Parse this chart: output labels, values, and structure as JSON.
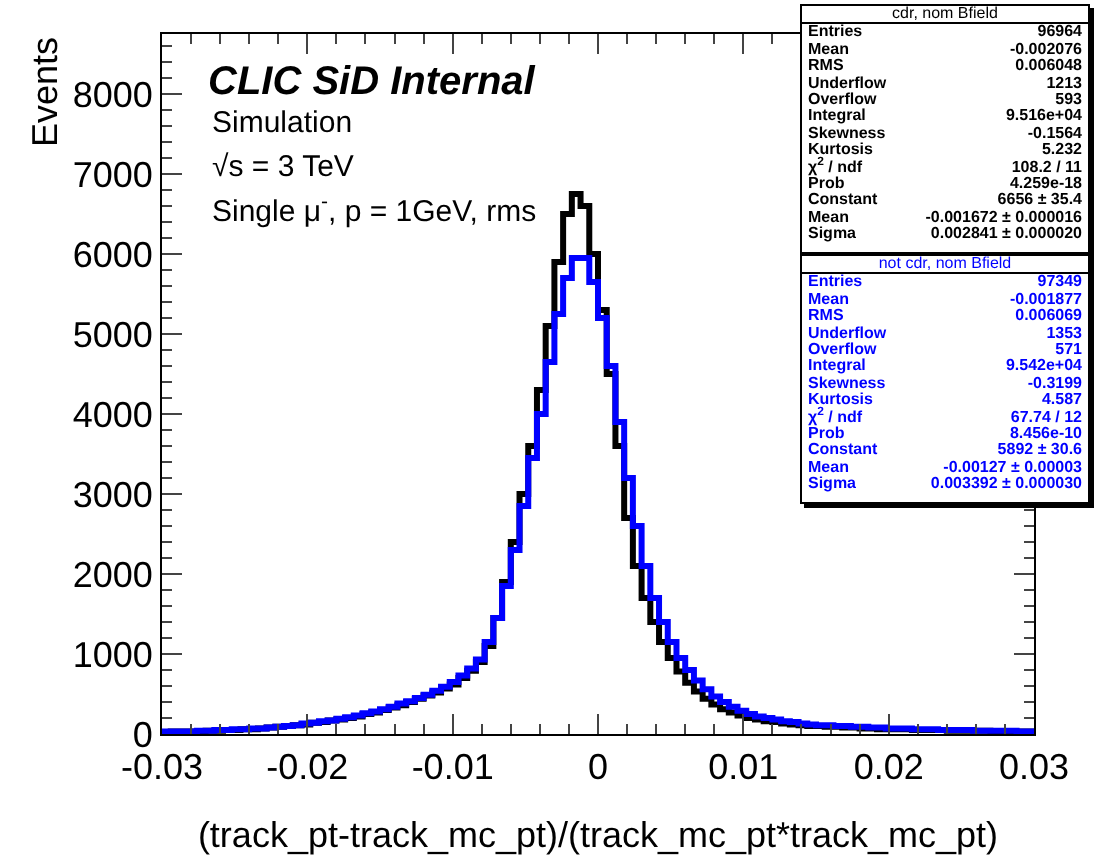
{
  "chart_data": {
    "type": "histogram",
    "title": "CLIC SiD Internal",
    "subtitle": "Simulation",
    "xlabel": "(track_pt-track_mc_pt)/(track_mc_pt*track_mc_pt)",
    "ylabel": "Events",
    "bins": [
      -0.03,
      -0.0294,
      -0.0288,
      -0.0282,
      -0.0276,
      -0.027,
      -0.0264,
      -0.0258,
      -0.0252,
      -0.0246,
      -0.024,
      -0.0234,
      -0.0228,
      -0.0222,
      -0.0216,
      -0.021,
      -0.0204,
      -0.0198,
      -0.0192,
      -0.0186,
      -0.018,
      -0.0174,
      -0.0168,
      -0.0162,
      -0.0156,
      -0.015,
      -0.0144,
      -0.0138,
      -0.0132,
      -0.0126,
      -0.012,
      -0.0114,
      -0.0108,
      -0.0102,
      -0.0096,
      -0.009,
      -0.0084,
      -0.0078,
      -0.0072,
      -0.0066,
      -0.006,
      -0.0054,
      -0.0048,
      -0.0042,
      -0.0036,
      -0.003,
      -0.0024,
      -0.0018,
      -0.0012,
      -0.0006,
      0,
      0.0006,
      0.0012,
      0.0018,
      0.0024,
      0.003,
      0.0036,
      0.0042,
      0.0048,
      0.0054,
      0.006,
      0.0066,
      0.0072,
      0.0078,
      0.0084,
      0.009,
      0.0096,
      0.0102,
      0.0108,
      0.0114,
      0.012,
      0.0126,
      0.0132,
      0.0138,
      0.0144,
      0.015,
      0.0156,
      0.0162,
      0.0168,
      0.0174,
      0.018,
      0.0186,
      0.0192,
      0.0198,
      0.0204,
      0.021,
      0.0216,
      0.0222,
      0.0228,
      0.0234,
      0.024,
      0.0246,
      0.0252,
      0.0258,
      0.0264,
      0.027,
      0.0276,
      0.0282,
      0.0288,
      0.0294,
      0.03
    ],
    "series": [
      {
        "name": "cdr, nom Bfield",
        "color": "#000000",
        "values": [
          20,
          30,
          30,
          30,
          30,
          40,
          40,
          50,
          50,
          60,
          60,
          70,
          80,
          90,
          100,
          110,
          120,
          140,
          150,
          170,
          180,
          200,
          220,
          250,
          270,
          300,
          330,
          360,
          400,
          440,
          480,
          520,
          570,
          620,
          700,
          790,
          900,
          1100,
          1450,
          1900,
          2400,
          3000,
          3600,
          4300,
          5100,
          5900,
          6500,
          6750,
          6600,
          6000,
          5300,
          4500,
          3600,
          2700,
          2100,
          1700,
          1400,
          1150,
          950,
          780,
          640,
          530,
          440,
          370,
          310,
          270,
          230,
          200,
          180,
          160,
          150,
          130,
          120,
          110,
          100,
          100,
          90,
          90,
          80,
          80,
          70,
          70,
          60,
          60,
          60,
          60,
          50,
          50,
          50,
          50,
          40,
          40,
          40,
          40,
          40,
          30,
          30,
          30,
          30,
          30
        ]
      },
      {
        "name": "not cdr, nom Bfield",
        "color": "#0000ff",
        "values": [
          30,
          30,
          30,
          30,
          40,
          40,
          50,
          50,
          60,
          60,
          70,
          70,
          80,
          90,
          100,
          110,
          130,
          140,
          160,
          170,
          190,
          210,
          230,
          260,
          280,
          310,
          340,
          380,
          410,
          450,
          490,
          540,
          590,
          650,
          730,
          820,
          930,
          1150,
          1450,
          1850,
          2300,
          2850,
          3450,
          4000,
          4650,
          5250,
          5700,
          5950,
          5950,
          5650,
          5200,
          4600,
          3900,
          3200,
          2600,
          2100,
          1700,
          1400,
          1150,
          950,
          800,
          670,
          560,
          470,
          400,
          340,
          290,
          250,
          220,
          200,
          180,
          160,
          150,
          130,
          120,
          110,
          110,
          100,
          100,
          90,
          90,
          80,
          80,
          70,
          70,
          70,
          60,
          60,
          60,
          50,
          50,
          50,
          50,
          40,
          40,
          40,
          40,
          40,
          30,
          30
        ]
      }
    ],
    "xlim": [
      -0.03,
      0.03
    ],
    "xticks": [
      -0.03,
      -0.02,
      -0.01,
      0,
      0.01,
      0.02,
      0.03
    ],
    "ylim": [
      0,
      8750
    ],
    "yticks": [
      0,
      1000,
      2000,
      3000,
      4000,
      5000,
      6000,
      7000,
      8000
    ],
    "grid": false,
    "legend": "top right",
    "line_style": "solid",
    "marker": "none",
    "annotations": [
      "√s = 3 TeV",
      "Single μ$^{-}$, p = 1GeV, rms",
      "Entries\t96964",
      "Mean\t-0.002076",
      "RMS\t0.006048",
      "Underflow\t1213",
      "Overflow\t593",
      "Integral\t9.516e+04",
      "Skewness\t-0.1564",
      "Kurtosis\t5.232",
      "χ$^{2}$ / ndf\t108.2 / 11",
      "Prob\t4.259e-18",
      "Constant\t6656 ± 35.4",
      "Mean\t-0.001672 ± 0.000016",
      "Sigma\t0.002841 ± 0.000020",
      "Entries\t97349",
      "Mean\t-0.001877",
      "RMS\t0.006069",
      "Underflow\t1353",
      "Overflow\t571",
      "Integral\t9.542e+04",
      "Skewness\t-0.3199",
      "Kurtosis\t4.587",
      "χ$^{2}$ / ndf\t67.74 / 12",
      "Prob\t8.456e-10",
      "Constant\t5892 ± 30.6",
      "Mean\t-0.00127 ± 0.00003",
      "Sigma\t0.003392 ± 0.000030"
    ]
  }
}
